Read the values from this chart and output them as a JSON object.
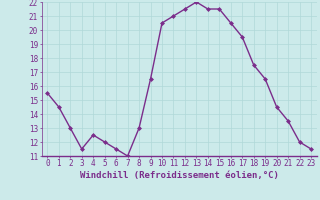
{
  "x": [
    0,
    1,
    2,
    3,
    4,
    5,
    6,
    7,
    8,
    9,
    10,
    11,
    12,
    13,
    14,
    15,
    16,
    17,
    18,
    19,
    20,
    21,
    22,
    23
  ],
  "y": [
    15.5,
    14.5,
    13.0,
    11.5,
    12.5,
    12.0,
    11.5,
    11.0,
    13.0,
    16.5,
    20.5,
    21.0,
    21.5,
    22.0,
    21.5,
    21.5,
    20.5,
    19.5,
    17.5,
    16.5,
    14.5,
    13.5,
    12.0,
    11.5
  ],
  "line_color": "#7b2d8b",
  "marker": "D",
  "marker_size": 2,
  "linewidth": 1.0,
  "xlabel": "Windchill (Refroidissement éolien,°C)",
  "xlabel_fontsize": 6.5,
  "ylim": [
    11,
    22
  ],
  "xlim": [
    -0.5,
    23.5
  ],
  "yticks": [
    11,
    12,
    13,
    14,
    15,
    16,
    17,
    18,
    19,
    20,
    21,
    22
  ],
  "xticks": [
    0,
    1,
    2,
    3,
    4,
    5,
    6,
    7,
    8,
    9,
    10,
    11,
    12,
    13,
    14,
    15,
    16,
    17,
    18,
    19,
    20,
    21,
    22,
    23
  ],
  "grid_color": "#b0d8d8",
  "bg_color": "#cceaea",
  "tick_fontsize": 5.5,
  "tick_color": "#7b2d8b",
  "xlabel_fontweight": "bold"
}
